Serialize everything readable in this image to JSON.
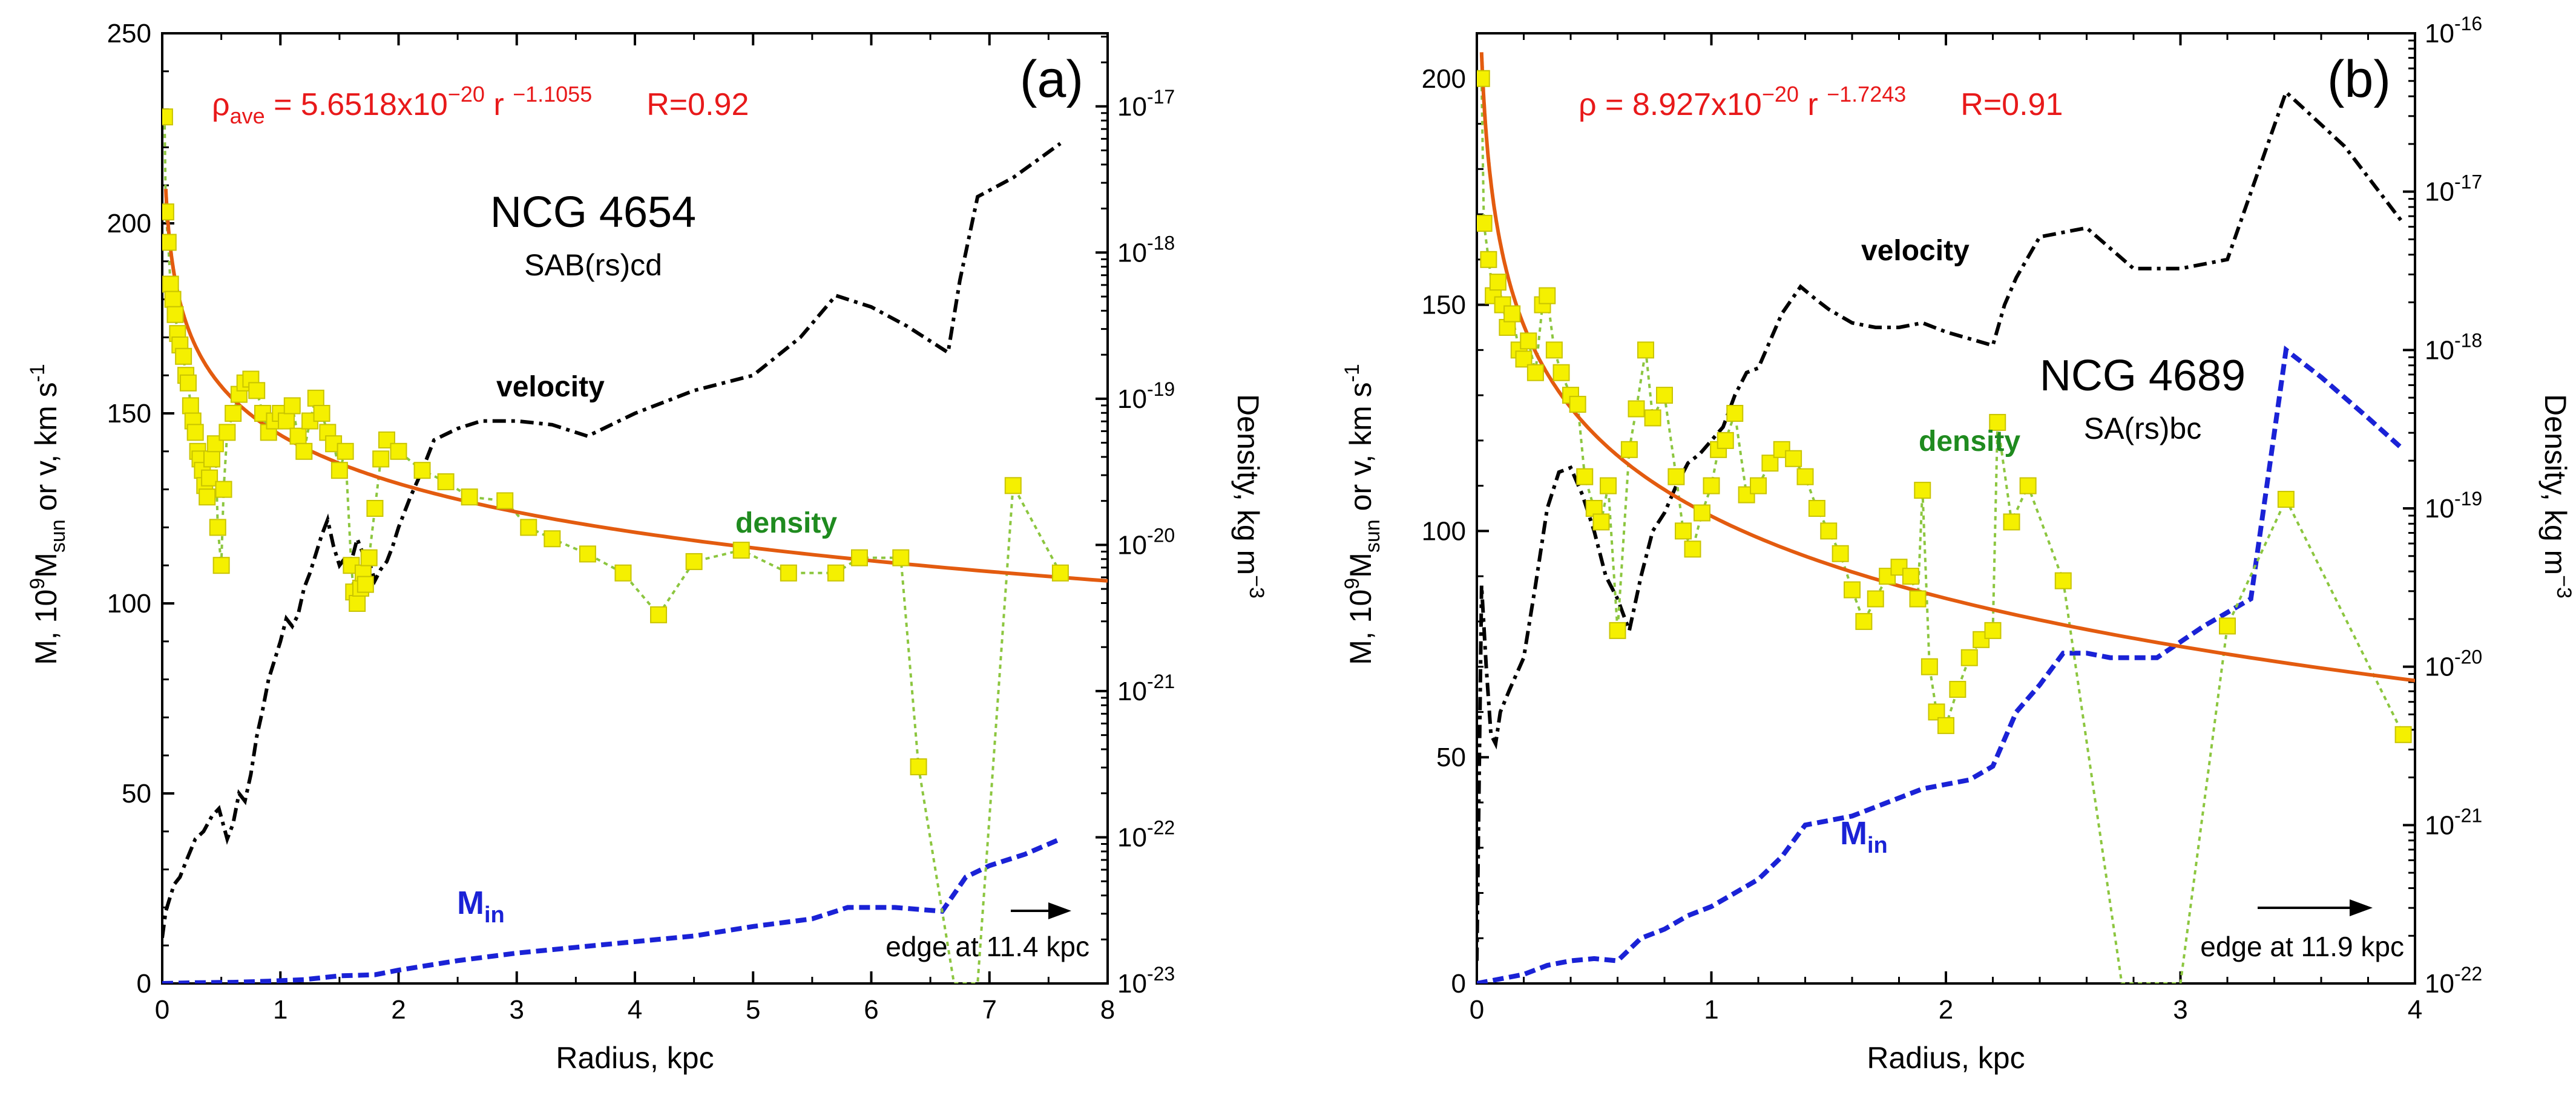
{
  "colors": {
    "axis": "#000000",
    "fit": "#e35b0f",
    "velocity": "#000000",
    "mass": "#1a22d6",
    "density_line": "#8cc63f",
    "density_marker": "#f5f000",
    "density_label": "#1f8b1f",
    "formula": "#e8191a"
  },
  "chart_data": [
    {
      "type": "line",
      "panel_label": "(a)",
      "galaxy": "NCG 4654",
      "morphology": "SAB(rs)cd",
      "fit_formula": {
        "rho": "ρ",
        "sub": "ave",
        "mid": " = 5.6518x10",
        "exp1": "−20",
        "r": " r ",
        "exp2": "−1.1055",
        "R": "R=0.92"
      },
      "xlabel": "Radius, kpc",
      "ylabel_left": {
        "a": "M, 10",
        "a_sup": "9",
        "b": "M",
        "b_sub": "sun",
        "c": "  or     v, km s",
        "c_sup": "-1"
      },
      "ylabel_right": {
        "a": "Density, kg m",
        "a_sup": "−3"
      },
      "xlim": [
        0,
        8
      ],
      "ylim_left": [
        0,
        250
      ],
      "ylim_right_log10": [
        -23,
        -16.5
      ],
      "x_ticks": [
        "0",
        "1",
        "2",
        "3",
        "4",
        "5",
        "6",
        "7",
        "8"
      ],
      "y_ticks": [
        "0",
        "50",
        "100",
        "150",
        "200",
        "250"
      ],
      "right_ticks": [
        {
          "base": "10",
          "exp": "-23"
        },
        {
          "base": "10",
          "exp": "-22"
        },
        {
          "base": "10",
          "exp": "-21"
        },
        {
          "base": "10",
          "exp": "-20"
        },
        {
          "base": "10",
          "exp": "-19"
        },
        {
          "base": "10",
          "exp": "-18"
        },
        {
          "base": "10",
          "exp": "-17"
        }
      ],
      "annotations": {
        "velocity": "velocity",
        "density": "density",
        "mass": "M",
        "mass_sub": "in",
        "edge": "edge at 11.4 kpc"
      },
      "fit_curve": {
        "coefficient": 5.6518e-20,
        "exponent": -1.1055,
        "x_range": [
          0.03,
          8
        ]
      },
      "velocity": {
        "x": [
          0,
          0.03,
          0.06,
          0.1,
          0.15,
          0.2,
          0.28,
          0.35,
          0.42,
          0.48,
          0.55,
          0.6,
          0.65,
          0.7,
          0.75,
          0.8,
          0.85,
          0.9,
          0.95,
          1.0,
          1.05,
          1.1,
          1.15,
          1.2,
          1.25,
          1.3,
          1.35,
          1.4,
          1.45,
          1.5,
          1.55,
          1.6,
          1.65,
          1.7,
          1.75,
          1.8,
          1.85,
          1.9,
          1.95,
          2.0,
          2.1,
          2.2,
          2.3,
          2.5,
          2.7,
          3.0,
          3.3,
          3.6,
          3.8,
          4.0,
          4.5,
          5.0,
          5.4,
          5.7,
          6.0,
          6.3,
          6.65,
          6.75,
          6.9,
          7.2,
          7.6
        ],
        "y": [
          12,
          19,
          22,
          26,
          28,
          32,
          38,
          40,
          44,
          46,
          38,
          42,
          50,
          48,
          55,
          65,
          72,
          80,
          85,
          90,
          96,
          94,
          97,
          104,
          108,
          113,
          118,
          122,
          115,
          110,
          112,
          111,
          117,
          113,
          111,
          106,
          109,
          111,
          115,
          120,
          128,
          135,
          143,
          146,
          148,
          148,
          147,
          144,
          147,
          150,
          156,
          160,
          170,
          181,
          178,
          173,
          166,
          185,
          207,
          212,
          221
        ]
      },
      "mass_in": {
        "x": [
          0,
          0.3,
          0.6,
          0.9,
          1.2,
          1.5,
          1.8,
          2.0,
          2.5,
          3.0,
          3.5,
          4.0,
          4.5,
          5.0,
          5.5,
          5.8,
          6.2,
          6.6,
          6.8,
          7.0,
          7.3,
          7.6
        ],
        "y": [
          0,
          0.2,
          0.3,
          0.6,
          1,
          2,
          2.3,
          3.5,
          6,
          8,
          9.5,
          11,
          12.5,
          15,
          17,
          20,
          20,
          19,
          28,
          31,
          34,
          38
        ]
      },
      "density": {
        "x": [
          0.02,
          0.03,
          0.05,
          0.07,
          0.09,
          0.11,
          0.13,
          0.15,
          0.18,
          0.2,
          0.22,
          0.24,
          0.26,
          0.28,
          0.3,
          0.32,
          0.34,
          0.36,
          0.38,
          0.4,
          0.42,
          0.45,
          0.47,
          0.5,
          0.52,
          0.55,
          0.6,
          0.65,
          0.7,
          0.75,
          0.8,
          0.85,
          0.9,
          0.95,
          1.0,
          1.05,
          1.1,
          1.15,
          1.2,
          1.25,
          1.3,
          1.35,
          1.4,
          1.45,
          1.5,
          1.55,
          1.6,
          1.62,
          1.65,
          1.68,
          1.7,
          1.72,
          1.75,
          1.8,
          1.85,
          1.9,
          2.0,
          2.2,
          2.4,
          2.6,
          2.9,
          3.1,
          3.3,
          3.6,
          3.9,
          4.2,
          4.5,
          4.9,
          5.3,
          5.7,
          5.9,
          6.25,
          6.4,
          6.7,
          6.9,
          7.2,
          7.6
        ],
        "y": [
          228,
          203,
          195,
          184,
          180,
          176,
          171,
          168,
          165,
          160,
          158,
          152,
          148,
          145,
          140,
          138,
          135,
          131,
          128,
          133,
          138,
          142,
          120,
          110,
          130,
          145,
          150,
          155,
          158,
          159,
          156,
          150,
          145,
          148,
          150,
          148,
          152,
          144,
          140,
          148,
          154,
          150,
          145,
          142,
          135,
          140,
          110,
          103,
          100,
          104,
          108,
          105,
          112,
          125,
          138,
          143,
          140,
          135,
          132,
          128,
          127,
          120,
          117,
          113,
          108,
          97,
          111,
          114,
          108,
          108,
          112,
          112,
          57,
          0,
          0,
          131,
          108
        ]
      }
    },
    {
      "type": "line",
      "panel_label": "(b)",
      "galaxy": "NCG 4689",
      "morphology": "SA(rs)bc",
      "fit_formula": {
        "rho": "ρ",
        "sub": "",
        "mid": " = 8.927x10",
        "exp1": "−20",
        "r": " r ",
        "exp2": "−1.7243",
        "R": "R=0.91"
      },
      "xlabel": "Radius, kpc",
      "ylabel_left": {
        "a": "M, 10",
        "a_sup": "9",
        "b": "M",
        "b_sub": "sun",
        "c": "  or     v, km s",
        "c_sup": "-1"
      },
      "ylabel_right": {
        "a": "Density, kg m",
        "a_sup": "−3"
      },
      "xlim": [
        0,
        4
      ],
      "ylim_left": [
        0,
        210
      ],
      "ylim_right_log10": [
        -22,
        -16
      ],
      "x_ticks": [
        "0",
        "1",
        "2",
        "3",
        "4"
      ],
      "y_ticks": [
        "0",
        "50",
        "100",
        "150",
        "200"
      ],
      "right_ticks": [
        {
          "base": "10",
          "exp": "-22"
        },
        {
          "base": "10",
          "exp": "-21"
        },
        {
          "base": "10",
          "exp": "-20"
        },
        {
          "base": "10",
          "exp": "-19"
        },
        {
          "base": "10",
          "exp": "-18"
        },
        {
          "base": "10",
          "exp": "-17"
        },
        {
          "base": "10",
          "exp": "-16"
        }
      ],
      "annotations": {
        "velocity": "velocity",
        "density": "density",
        "mass": "M",
        "mass_sub": "in",
        "edge": "edge at 11.9 kpc"
      },
      "fit_curve": {
        "coefficient": 8.927e-20,
        "exponent": -1.7243,
        "x_range": [
          0.02,
          4
        ]
      },
      "velocity": {
        "x": [
          0,
          0.02,
          0.04,
          0.06,
          0.08,
          0.1,
          0.14,
          0.2,
          0.25,
          0.3,
          0.35,
          0.4,
          0.45,
          0.5,
          0.55,
          0.6,
          0.65,
          0.7,
          0.75,
          0.8,
          0.85,
          0.9,
          0.95,
          1.0,
          1.05,
          1.1,
          1.15,
          1.2,
          1.3,
          1.38,
          1.45,
          1.5,
          1.6,
          1.7,
          1.8,
          1.9,
          2.0,
          2.2,
          2.25,
          2.3,
          2.4,
          2.6,
          2.8,
          3.0,
          3.2,
          3.45,
          3.7,
          3.95
        ],
        "y": [
          5,
          88,
          70,
          55,
          53,
          60,
          65,
          72,
          88,
          105,
          113,
          114,
          108,
          100,
          90,
          85,
          78,
          90,
          100,
          104,
          110,
          115,
          117,
          120,
          123,
          130,
          135,
          136,
          148,
          154,
          151,
          149,
          146,
          145,
          145,
          146,
          144,
          141,
          150,
          156,
          165,
          167,
          158,
          158,
          160,
          197,
          185,
          168
        ]
      },
      "mass_in": {
        "x": [
          0,
          0.1,
          0.2,
          0.3,
          0.4,
          0.5,
          0.6,
          0.7,
          0.8,
          0.9,
          1.0,
          1.1,
          1.2,
          1.3,
          1.4,
          1.5,
          1.6,
          1.7,
          1.8,
          1.9,
          2.0,
          2.1,
          2.2,
          2.3,
          2.4,
          2.5,
          2.6,
          2.7,
          2.9,
          3.1,
          3.3,
          3.45,
          3.6,
          3.8,
          3.95
        ],
        "y": [
          0,
          1,
          2,
          4,
          5,
          5.5,
          5,
          10,
          12,
          15,
          17,
          20,
          23,
          28,
          35,
          36,
          37,
          39,
          41,
          43,
          44,
          45,
          48,
          60,
          66,
          73,
          73,
          72,
          72,
          79,
          85,
          140,
          134,
          125,
          118
        ]
      },
      "density": {
        "x": [
          0.02,
          0.03,
          0.05,
          0.07,
          0.09,
          0.11,
          0.13,
          0.15,
          0.18,
          0.2,
          0.22,
          0.25,
          0.28,
          0.3,
          0.33,
          0.36,
          0.4,
          0.43,
          0.46,
          0.5,
          0.53,
          0.56,
          0.6,
          0.65,
          0.68,
          0.72,
          0.75,
          0.8,
          0.85,
          0.88,
          0.92,
          0.96,
          1.0,
          1.03,
          1.06,
          1.1,
          1.15,
          1.2,
          1.25,
          1.3,
          1.35,
          1.4,
          1.45,
          1.5,
          1.55,
          1.6,
          1.65,
          1.7,
          1.75,
          1.8,
          1.85,
          1.88,
          1.9,
          1.93,
          1.96,
          2.0,
          2.05,
          2.1,
          2.15,
          2.2,
          2.22,
          2.28,
          2.35,
          2.5,
          2.75,
          3.0,
          3.2,
          3.45,
          3.95
        ],
        "y": [
          200,
          168,
          160,
          152,
          155,
          150,
          145,
          148,
          140,
          138,
          142,
          135,
          150,
          152,
          140,
          135,
          130,
          128,
          112,
          105,
          102,
          110,
          78,
          118,
          127,
          140,
          125,
          130,
          112,
          100,
          96,
          104,
          110,
          118,
          120,
          126,
          108,
          110,
          115,
          118,
          116,
          112,
          105,
          100,
          95,
          87,
          80,
          85,
          90,
          92,
          90,
          85,
          109,
          70,
          60,
          57,
          65,
          72,
          76,
          78,
          124,
          102,
          110,
          89,
          0,
          0,
          79,
          107,
          55
        ]
      }
    }
  ]
}
